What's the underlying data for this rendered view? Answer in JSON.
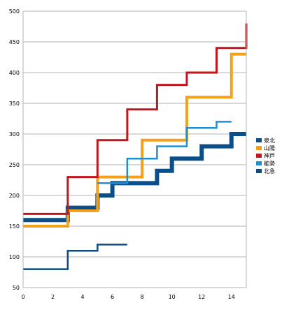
{
  "chart_data": {
    "type": "line",
    "step": true,
    "grid": "horizontal",
    "legend_position": "right",
    "xlim": [
      0,
      15
    ],
    "ylim": [
      50,
      500
    ],
    "x_ticks": [
      0,
      2,
      4,
      6,
      8,
      10,
      12,
      14
    ],
    "y_ticks": [
      50,
      100,
      150,
      200,
      250,
      300,
      350,
      400,
      450,
      500
    ],
    "series": [
      {
        "name": "泉北",
        "color": "#0b4f8a",
        "x": [
          0,
          3,
          3,
          5,
          5,
          6,
          6,
          9,
          9,
          10,
          10,
          12,
          12,
          14,
          14,
          15
        ],
        "y": [
          160,
          160,
          180,
          180,
          200,
          200,
          220,
          220,
          240,
          240,
          260,
          260,
          280,
          280,
          300,
          300
        ]
      },
      {
        "name": "山陽",
        "color": "#f5a01a",
        "x": [
          0,
          3,
          3,
          5,
          5,
          8,
          8,
          11,
          11,
          14,
          14,
          15
        ],
        "y": [
          150,
          150,
          175,
          175,
          230,
          230,
          290,
          290,
          360,
          360,
          430,
          430
        ]
      },
      {
        "name": "神戸",
        "color": "#c0161d",
        "x": [
          0,
          3,
          3,
          5,
          5,
          7,
          7,
          9,
          9,
          11,
          11,
          13,
          13,
          15,
          15
        ],
        "y": [
          170,
          170,
          230,
          230,
          290,
          290,
          340,
          340,
          380,
          380,
          400,
          400,
          440,
          440,
          480
        ]
      },
      {
        "name": "能勢",
        "color": "#1f8fd0",
        "x": [
          5,
          7,
          7,
          9,
          9,
          11,
          11,
          13,
          13,
          14
        ],
        "y": [
          220,
          220,
          260,
          260,
          280,
          280,
          310,
          310,
          320,
          320
        ]
      },
      {
        "name": "北急",
        "color": "#0d4a80",
        "x": [
          0,
          3,
          3,
          5,
          5,
          7
        ],
        "y": [
          80,
          80,
          110,
          110,
          120,
          120
        ]
      }
    ]
  }
}
